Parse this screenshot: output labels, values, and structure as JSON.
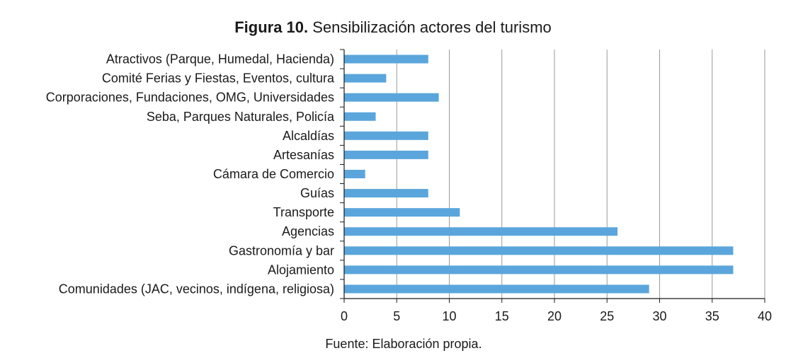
{
  "figure": {
    "label": "Figura 10.",
    "caption": "Sensibilización actores del turismo",
    "source": "Fuente: Elaboración propia."
  },
  "colors": {
    "bar": "#5aa6dc",
    "grid": "#9a9a9a",
    "axis": "#1a1a1a"
  },
  "chart_data": {
    "type": "bar",
    "orientation": "horizontal",
    "title": "Figura 10. Sensibilización actores del turismo",
    "xlabel": "",
    "ylabel": "",
    "xlim": [
      0,
      40
    ],
    "xticks": [
      0,
      5,
      10,
      15,
      20,
      25,
      30,
      35,
      40
    ],
    "grid": true,
    "legend": "none",
    "categories": [
      "Atractivos (Parque, Humedal, Hacienda)",
      "Comité Ferias y Fiestas, Eventos, cultura",
      "Corporaciones, Fundaciones, OMG, Universidades",
      "Seba, Parques Naturales, Policía",
      "Alcaldías",
      "Artesanías",
      "Cámara de Comercio",
      "Guías",
      "Transporte",
      "Agencias",
      "Gastronomía y bar",
      "Alojamiento",
      "Comunidades (JAC, vecinos, indígena, religiosa)"
    ],
    "values": [
      8,
      4,
      9,
      3,
      8,
      8,
      2,
      8,
      11,
      26,
      37,
      37,
      29
    ]
  }
}
